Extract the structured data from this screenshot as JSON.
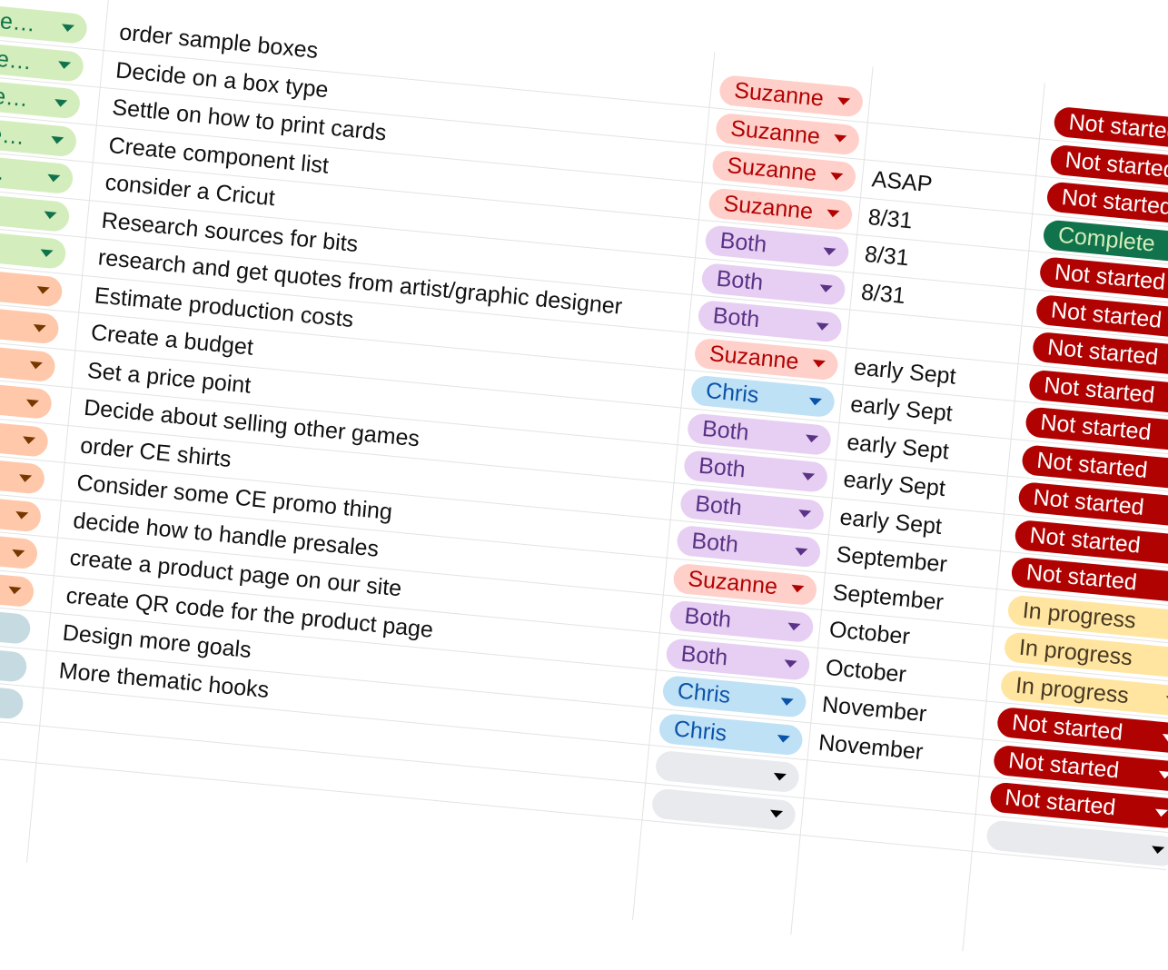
{
  "rows": [
    {
      "phase": "De…",
      "task": "order sample boxes",
      "owner": "Suzanne",
      "date": "",
      "status": "Not started"
    },
    {
      "phase": "De…",
      "task": "Decide on a box type",
      "owner": "Suzanne",
      "date": "",
      "status": "Not started"
    },
    {
      "phase": "De…",
      "task": "Settle on how to print cards",
      "owner": "Suzanne",
      "date": "ASAP",
      "status": "Not started"
    },
    {
      "phase": "De…",
      "task": "Create component list",
      "owner": "Suzanne",
      "date": "8/31",
      "status": "Complete"
    },
    {
      "phase": "e…",
      "task": "consider a Cricut",
      "owner": "Both",
      "date": "8/31",
      "status": "Not started"
    },
    {
      "phase": "e…",
      "task": "Research sources for bits",
      "owner": "Both",
      "date": "8/31",
      "status": "Not started"
    },
    {
      "phase": "",
      "task": "research and get quotes from artist/graphic designer",
      "owner": "Both",
      "date": "",
      "status": "Not started"
    },
    {
      "phase": "",
      "task": "Estimate production costs",
      "owner": "Suzanne",
      "date": "early Sept",
      "status": "Not started"
    },
    {
      "phase": "",
      "task": "Create a budget",
      "owner": "Chris",
      "date": "early Sept",
      "status": "Not started"
    },
    {
      "phase": "",
      "task": "Set a price point",
      "owner": "Both",
      "date": "early Sept",
      "status": "Not started"
    },
    {
      "phase": "",
      "task": "Decide about selling other games",
      "owner": "Both",
      "date": "early Sept",
      "status": "Not started"
    },
    {
      "phase": "",
      "task": "order CE shirts",
      "owner": "Both",
      "date": "early Sept",
      "status": "Not started"
    },
    {
      "phase": "",
      "task": "Consider some CE promo thing",
      "owner": "Both",
      "date": "September",
      "status": "Not started"
    },
    {
      "phase": "",
      "task": "decide how to handle presales",
      "owner": "Suzanne",
      "date": "September",
      "status": "In progress"
    },
    {
      "phase": "",
      "task": "create a product page on our site",
      "owner": "Both",
      "date": "October",
      "status": "In progress"
    },
    {
      "phase": "",
      "task": "create QR code for the product page",
      "owner": "Both",
      "date": "October",
      "status": "In progress"
    },
    {
      "phase": "",
      "task": "Design more goals",
      "owner": "Chris",
      "date": "November",
      "status": "Not started"
    },
    {
      "phase": "",
      "task": "More thematic hooks",
      "owner": "Chris",
      "date": "November",
      "status": "Not started"
    },
    {
      "phase": "",
      "task": "",
      "owner": "",
      "date": "",
      "status": "Not started"
    },
    {
      "phase": "",
      "task": "",
      "owner": "",
      "date": "",
      "status": ""
    }
  ],
  "colors": {
    "phase_green": {
      "bg": "#d4edbc",
      "fg": "#11734b"
    },
    "phase_orange": {
      "bg": "#ffc8aa",
      "fg": "#753800"
    },
    "phase_blue": {
      "bg": "#c6dbe1",
      "fg": "#0a394f"
    },
    "owner_Suzanne": {
      "bg": "#ffcfc9",
      "fg": "#b10202"
    },
    "owner_Both": {
      "bg": "#e6cff2",
      "fg": "#5a3286"
    },
    "owner_Chris": {
      "bg": "#bfe1f6",
      "fg": "#0a53a8"
    },
    "owner_empty": {
      "bg": "#e8eaed",
      "fg": "#000000"
    },
    "status_Not_started": {
      "bg": "#b10202",
      "fg": "#ffffff"
    },
    "status_Complete": {
      "bg": "#11734b",
      "fg": "#d4edbc"
    },
    "status_In_progress": {
      "bg": "#ffe5a0",
      "fg": "#473821"
    },
    "status_empty": {
      "bg": "#e8eaed",
      "fg": "#000000"
    }
  }
}
